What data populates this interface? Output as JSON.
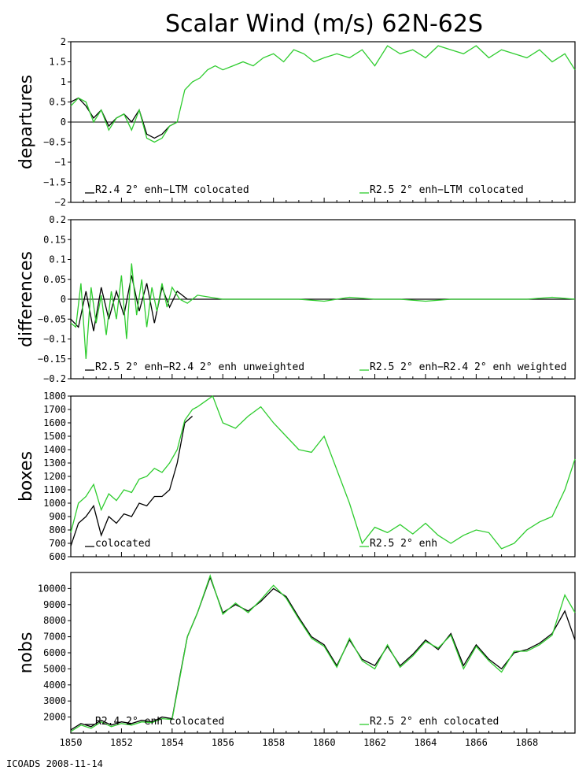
{
  "title": "Scalar Wind (m/s) 62N-62S",
  "footer": "ICOADS 2008-11-14",
  "colors": {
    "black_series": "#000000",
    "green_series": "#2ecc2e",
    "frame": "#000000"
  },
  "x_axis": {
    "range": [
      1850,
      1869.9
    ],
    "tick_values": [
      1850,
      1852,
      1854,
      1856,
      1858,
      1860,
      1862,
      1864,
      1866,
      1868
    ],
    "tick_labels": [
      "1850",
      "1852",
      "1854",
      "1856",
      "1858",
      "1860",
      "1862",
      "1864",
      "1866",
      "1868"
    ]
  },
  "chart_data": [
    {
      "type": "line",
      "ylabel": "departures",
      "ylim": [
        -2,
        2
      ],
      "yticks": [
        2,
        1.5,
        1,
        0.5,
        0,
        -0.5,
        -1,
        -1.5,
        -2
      ],
      "ytick_labels": [
        "2",
        "1.5",
        "1",
        "0.5",
        "0",
        "−0.5",
        "−1",
        "−1.5",
        "−2"
      ],
      "zero_line": true,
      "legend": [
        "R2.4 2° enh−LTM colocated",
        "R2.5 2° enh−LTM colocated"
      ],
      "series": [
        {
          "name": "R2.4 2° enh−LTM colocated",
          "color": "black",
          "x": [
            1850.0,
            1850.3,
            1850.6,
            1850.9,
            1851.2,
            1851.5,
            1851.8,
            1852.1,
            1852.4,
            1852.7,
            1853.0,
            1853.3,
            1853.6,
            1853.9,
            1854.2
          ],
          "values": [
            0.5,
            0.6,
            0.4,
            0.1,
            0.3,
            -0.1,
            0.1,
            0.2,
            0.0,
            0.3,
            -0.3,
            -0.4,
            -0.3,
            -0.1,
            0.0
          ]
        },
        {
          "name": "R2.5 2° enh−LTM colocated",
          "color": "green",
          "x": [
            1850.0,
            1850.3,
            1850.6,
            1850.9,
            1851.2,
            1851.5,
            1851.8,
            1852.1,
            1852.4,
            1852.7,
            1853.0,
            1853.3,
            1853.6,
            1853.9,
            1854.2,
            1854.5,
            1854.8,
            1855.1,
            1855.4,
            1855.7,
            1856.0,
            1856.4,
            1856.8,
            1857.2,
            1857.6,
            1858.0,
            1858.4,
            1858.8,
            1859.2,
            1859.6,
            1860.0,
            1860.5,
            1861.0,
            1861.5,
            1862.0,
            1862.5,
            1863.0,
            1863.5,
            1864.0,
            1864.5,
            1865.0,
            1865.5,
            1866.0,
            1866.5,
            1867.0,
            1867.5,
            1868.0,
            1868.5,
            1869.0,
            1869.5,
            1869.9
          ],
          "values": [
            0.4,
            0.6,
            0.5,
            0.0,
            0.3,
            -0.2,
            0.1,
            0.2,
            -0.2,
            0.3,
            -0.4,
            -0.5,
            -0.4,
            -0.1,
            0.0,
            0.8,
            1.0,
            1.1,
            1.3,
            1.4,
            1.3,
            1.4,
            1.5,
            1.4,
            1.6,
            1.7,
            1.5,
            1.8,
            1.7,
            1.5,
            1.6,
            1.7,
            1.6,
            1.8,
            1.4,
            1.9,
            1.7,
            1.8,
            1.6,
            1.9,
            1.8,
            1.7,
            1.9,
            1.6,
            1.8,
            1.7,
            1.6,
            1.8,
            1.5,
            1.7,
            1.3
          ]
        }
      ]
    },
    {
      "type": "line",
      "ylabel": "differences",
      "ylim": [
        -0.2,
        0.2
      ],
      "yticks": [
        0.2,
        0.15,
        0.1,
        0.05,
        0,
        -0.05,
        -0.1,
        -0.15,
        -0.2
      ],
      "ytick_labels": [
        "0.2",
        "0.15",
        "0.1",
        "0.05",
        "0",
        "−0.05",
        "−0.1",
        "−0.15",
        "−0.2"
      ],
      "zero_line": true,
      "legend": [
        "R2.5 2° enh−R2.4 2° enh unweighted",
        "R2.5 2° enh−R2.4 2° enh weighted"
      ],
      "series": [
        {
          "name": "R2.5 2° enh−R2.4 2° enh unweighted",
          "color": "black",
          "x": [
            1850.0,
            1850.3,
            1850.6,
            1850.9,
            1851.2,
            1851.5,
            1851.8,
            1852.1,
            1852.4,
            1852.7,
            1853.0,
            1853.3,
            1853.6,
            1853.9,
            1854.2,
            1854.6,
            1855.0,
            1856.0,
            1858.0,
            1860.0,
            1862.0,
            1864.0,
            1866.0,
            1868.0,
            1869.9
          ],
          "values": [
            -0.05,
            -0.07,
            0.02,
            -0.08,
            0.03,
            -0.05,
            0.02,
            -0.04,
            0.06,
            -0.03,
            0.04,
            -0.06,
            0.03,
            -0.02,
            0.02,
            0.0,
            0.0,
            0.0,
            0.0,
            0.0,
            0.0,
            0.0,
            0.0,
            0.0,
            0.0
          ]
        },
        {
          "name": "R2.5 2° enh−R2.4 2° enh weighted",
          "color": "green",
          "x": [
            1850.0,
            1850.2,
            1850.4,
            1850.6,
            1850.8,
            1851.0,
            1851.2,
            1851.4,
            1851.6,
            1851.8,
            1852.0,
            1852.2,
            1852.4,
            1852.6,
            1852.8,
            1853.0,
            1853.2,
            1853.4,
            1853.6,
            1853.8,
            1854.0,
            1854.3,
            1854.6,
            1855.0,
            1856.0,
            1857.0,
            1858.0,
            1859.0,
            1860.0,
            1861.0,
            1862.0,
            1863.0,
            1864.0,
            1865.0,
            1866.0,
            1867.0,
            1868.0,
            1869.0,
            1869.9
          ],
          "values": [
            -0.06,
            -0.07,
            0.04,
            -0.15,
            0.03,
            -0.06,
            0.01,
            -0.09,
            0.02,
            -0.05,
            0.06,
            -0.1,
            0.09,
            -0.04,
            0.05,
            -0.07,
            0.03,
            -0.03,
            0.04,
            -0.02,
            0.03,
            0.0,
            -0.01,
            0.01,
            0.0,
            0.0,
            0.0,
            0.0,
            -0.005,
            0.005,
            0.0,
            0.0,
            -0.005,
            0.0,
            0.0,
            0.0,
            0.0,
            0.005,
            0.0
          ]
        }
      ]
    },
    {
      "type": "line",
      "ylabel": "boxes",
      "ylim": [
        600,
        1800
      ],
      "yticks": [
        1800,
        1700,
        1600,
        1500,
        1400,
        1300,
        1200,
        1100,
        1000,
        900,
        800,
        700,
        600
      ],
      "ytick_labels": [
        "1800",
        "1700",
        "1600",
        "1500",
        "1400",
        "1300",
        "1200",
        "1100",
        "1000",
        "900",
        "800",
        "700",
        "600"
      ],
      "zero_line": false,
      "legend": [
        "colocated",
        "R2.5 2° enh"
      ],
      "series": [
        {
          "name": "colocated",
          "color": "black",
          "x": [
            1850.0,
            1850.3,
            1850.6,
            1850.9,
            1851.2,
            1851.5,
            1851.8,
            1852.1,
            1852.4,
            1852.7,
            1853.0,
            1853.3,
            1853.6,
            1853.9,
            1854.2,
            1854.5,
            1854.8
          ],
          "values": [
            680,
            850,
            900,
            980,
            760,
            900,
            850,
            920,
            900,
            1000,
            980,
            1050,
            1050,
            1100,
            1300,
            1600,
            1650
          ]
        },
        {
          "name": "R2.5 2° enh",
          "color": "green",
          "x": [
            1850.0,
            1850.3,
            1850.6,
            1850.9,
            1851.2,
            1851.5,
            1851.8,
            1852.1,
            1852.4,
            1852.7,
            1853.0,
            1853.3,
            1853.6,
            1853.9,
            1854.2,
            1854.5,
            1854.8,
            1855.0,
            1855.3,
            1855.6,
            1856.0,
            1856.5,
            1857.0,
            1857.5,
            1858.0,
            1858.5,
            1859.0,
            1859.5,
            1860.0,
            1860.5,
            1861.0,
            1861.5,
            1862.0,
            1862.5,
            1863.0,
            1863.5,
            1864.0,
            1864.5,
            1865.0,
            1865.5,
            1866.0,
            1866.5,
            1867.0,
            1867.5,
            1868.0,
            1868.5,
            1869.0,
            1869.5,
            1869.9
          ],
          "values": [
            780,
            1000,
            1050,
            1140,
            950,
            1070,
            1020,
            1100,
            1080,
            1180,
            1200,
            1260,
            1230,
            1300,
            1400,
            1620,
            1700,
            1720,
            1760,
            1800,
            1600,
            1560,
            1650,
            1720,
            1600,
            1500,
            1400,
            1380,
            1500,
            1250,
            1000,
            700,
            820,
            780,
            840,
            770,
            850,
            760,
            700,
            760,
            800,
            780,
            660,
            700,
            800,
            860,
            900,
            1100,
            1330
          ]
        }
      ]
    },
    {
      "type": "line",
      "ylabel": "nobs",
      "ylim": [
        1000,
        11000
      ],
      "yticks": [
        10000,
        9000,
        8000,
        7000,
        6000,
        5000,
        4000,
        3000,
        2000
      ],
      "ytick_labels": [
        "10000",
        "9000",
        "8000",
        "7000",
        "6000",
        "5000",
        "4000",
        "3000",
        "2000"
      ],
      "zero_line": false,
      "legend": [
        "R2.4 2° enh colocated",
        "R2.5 2° enh colocated"
      ],
      "series": [
        {
          "name": "R2.4 2° enh colocated",
          "color": "black",
          "x": [
            1850.0,
            1850.4,
            1850.8,
            1851.2,
            1851.6,
            1852.0,
            1852.4,
            1852.8,
            1853.2,
            1853.6,
            1854.0,
            1854.3,
            1854.6,
            1855.0,
            1855.5,
            1856.0,
            1856.5,
            1857.0,
            1857.5,
            1858.0,
            1858.5,
            1859.0,
            1859.5,
            1860.0,
            1860.5,
            1861.0,
            1861.5,
            1862.0,
            1862.5,
            1863.0,
            1863.5,
            1864.0,
            1864.5,
            1865.0,
            1865.5,
            1866.0,
            1866.5,
            1867.0,
            1867.5,
            1868.0,
            1868.5,
            1869.0,
            1869.5,
            1869.9
          ],
          "values": [
            1200,
            1600,
            1400,
            1800,
            1500,
            1700,
            1600,
            1800,
            1700,
            2000,
            1900,
            4500,
            7000,
            8500,
            10700,
            8500,
            9000,
            8600,
            9200,
            10000,
            9500,
            8200,
            7000,
            6500,
            5200,
            6800,
            5600,
            5200,
            6400,
            5200,
            5900,
            6800,
            6200,
            7200,
            5200,
            6500,
            5600,
            5000,
            6000,
            6200,
            6600,
            7200,
            8600,
            6800
          ]
        },
        {
          "name": "R2.5 2° enh colocated",
          "color": "green",
          "x": [
            1850.0,
            1850.4,
            1850.8,
            1851.2,
            1851.6,
            1852.0,
            1852.4,
            1852.8,
            1853.2,
            1853.6,
            1854.0,
            1854.3,
            1854.6,
            1855.0,
            1855.5,
            1856.0,
            1856.5,
            1857.0,
            1857.5,
            1858.0,
            1858.5,
            1859.0,
            1859.5,
            1860.0,
            1860.5,
            1861.0,
            1861.5,
            1862.0,
            1862.5,
            1863.0,
            1863.5,
            1864.0,
            1864.5,
            1865.0,
            1865.5,
            1866.0,
            1866.5,
            1867.0,
            1867.5,
            1868.0,
            1868.5,
            1869.0,
            1869.5,
            1869.9
          ],
          "values": [
            1100,
            1500,
            1300,
            1700,
            1400,
            1600,
            1500,
            1700,
            1650,
            1900,
            1850,
            4400,
            7000,
            8500,
            10800,
            8400,
            9100,
            8500,
            9300,
            10200,
            9400,
            8100,
            6900,
            6400,
            5100,
            6900,
            5500,
            5000,
            6500,
            5100,
            5800,
            6700,
            6300,
            7100,
            5000,
            6400,
            5500,
            4800,
            6100,
            6100,
            6500,
            7100,
            9600,
            8500
          ]
        }
      ]
    }
  ]
}
